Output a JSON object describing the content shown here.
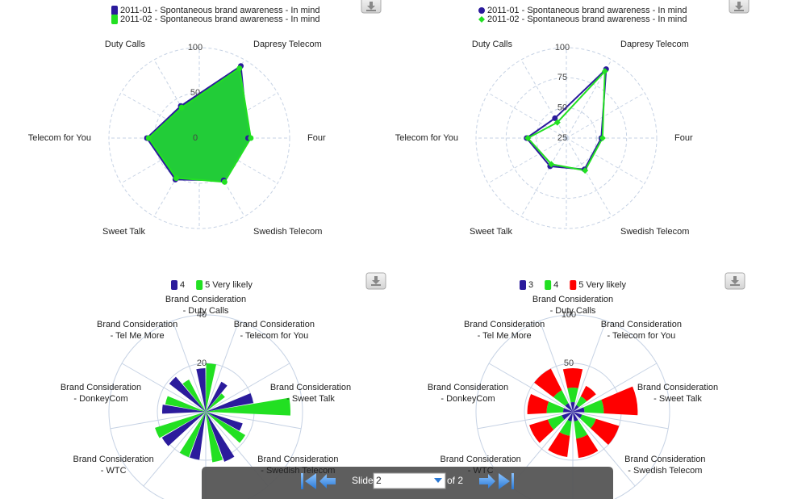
{
  "chart_data": [
    {
      "type": "area-radar",
      "categories": [
        "Dapresy Telecom",
        "Four",
        "Swedish Telecom",
        "Sweet Talk",
        "Telecom for You",
        "Duty Calls"
      ],
      "series": [
        {
          "name": "2011-01 - Spontaneous brand awareness - In mind",
          "color": "#2b1b9c",
          "marker": "square",
          "values": [
            92,
            54,
            54,
            53,
            58,
            41
          ]
        },
        {
          "name": "2011-02 - Spontaneous brand awareness - In mind",
          "color": "#22e022",
          "marker": "square",
          "values": [
            89,
            57,
            56,
            51,
            56,
            39
          ]
        }
      ],
      "ylim": [
        0,
        100
      ],
      "yticks": [
        0,
        50,
        100
      ],
      "grid": true
    },
    {
      "type": "line-radar",
      "categories": [
        "Dapresy Telecom",
        "Four",
        "Swedish Telecom",
        "Sweet Talk",
        "Telecom for You",
        "Duty Calls"
      ],
      "series": [
        {
          "name": "2011-01 - Spontaneous brand awareness - In mind",
          "color": "#2b1b9c",
          "marker": "circle",
          "values": [
            91,
            54,
            55,
            52,
            58,
            44
          ]
        },
        {
          "name": "2011-02 - Spontaneous brand awareness - In mind",
          "color": "#22e022",
          "marker": "diamond",
          "values": [
            89,
            55,
            56,
            50,
            57,
            40
          ]
        }
      ],
      "ylim": [
        25,
        100
      ],
      "yticks": [
        25,
        50,
        75,
        100
      ],
      "grid": true
    },
    {
      "type": "polar-column",
      "categories": [
        "Brand Consideration - Duty Calls",
        "Brand Consideration - Telecom for You",
        "Brand Consideration - Sweet Talk",
        "Brand Consideration - Swedish Telecom",
        null,
        null,
        "Brand Consideration - WTC",
        "Brand Consideration - DonkeyCom",
        "Brand Consideration - Tel Me More"
      ],
      "series": [
        {
          "name": "4",
          "color": "#2b1b9c",
          "values": [
            18,
            14,
            20,
            16,
            22,
            20,
            21,
            18,
            19
          ]
        },
        {
          "name": "5 Very likely",
          "color": "#22e022",
          "values": [
            20,
            10,
            35,
            19,
            21,
            20,
            22,
            17,
            15
          ]
        }
      ],
      "ylim": [
        0,
        40
      ],
      "yticks": [
        20,
        40
      ],
      "grid": true
    },
    {
      "type": "polar-stacked",
      "categories": [
        "Brand Consideration - Duty Calls",
        "Brand Consideration - Telecom for You",
        "Brand Consideration - Sweet Talk",
        "Brand Consideration - Swedish Telecom",
        null,
        null,
        "Brand Consideration - WTC",
        "Brand Consideration - DonkeyCom",
        "Brand Consideration - Tel Me More"
      ],
      "series": [
        {
          "name": "3",
          "color": "#2b1b9c",
          "values": [
            10,
            8,
            12,
            10,
            10,
            10,
            12,
            10,
            10
          ]
        },
        {
          "name": "4",
          "color": "#22e022",
          "values": [
            15,
            10,
            20,
            15,
            18,
            15,
            15,
            17,
            15
          ]
        },
        {
          "name": "5 Very likely",
          "color": "#ff0000",
          "values": [
            20,
            12,
            35,
            25,
            20,
            22,
            20,
            20,
            25
          ]
        }
      ],
      "ylim": [
        0,
        100
      ],
      "yticks": [
        50,
        100
      ],
      "grid": true
    }
  ],
  "navigation": {
    "label": "Slide",
    "current": "2",
    "total": "of 2"
  }
}
